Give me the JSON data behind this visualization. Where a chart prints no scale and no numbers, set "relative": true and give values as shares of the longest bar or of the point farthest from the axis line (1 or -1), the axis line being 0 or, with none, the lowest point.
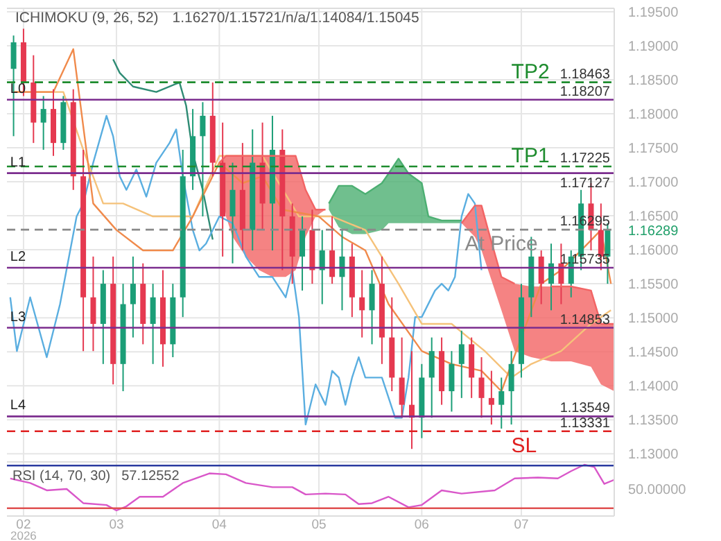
{
  "chart_data": [
    {
      "type": "candlestick",
      "title": "ICHIMOKU (9, 26, 52)",
      "subtitle": "1.16270/1.15721/n/a/1.14084/1.15045",
      "x": [
        "2026-01-29",
        "2026-02-01",
        "2026-02-04",
        "2026-02-07",
        "2026-02-10",
        "2026-02-13",
        "2026-02-16",
        "2026-02-19",
        "2026-02-22",
        "2026-02-25",
        "2026-02-28",
        "2026-03-03",
        "2026-03-06",
        "2026-03-09",
        "2026-03-12",
        "2026-03-15",
        "2026-03-18",
        "2026-03-21",
        "2026-03-24",
        "2026-03-27",
        "2026-03-30",
        "2026-04-02",
        "2026-04-05",
        "2026-04-08",
        "2026-04-11",
        "2026-04-14",
        "2026-04-17",
        "2026-04-20",
        "2026-04-23",
        "2026-04-26",
        "2026-04-29",
        "2026-05-02",
        "2026-05-05",
        "2026-05-08",
        "2026-05-11",
        "2026-05-14",
        "2026-05-17",
        "2026-05-20",
        "2026-05-23",
        "2026-05-26",
        "2026-05-29",
        "2026-06-01",
        "2026-06-04",
        "2026-06-07",
        "2026-06-10",
        "2026-06-13",
        "2026-06-16",
        "2026-06-19",
        "2026-06-22",
        "2026-06-25",
        "2026-06-28",
        "2026-07-01",
        "2026-07-04",
        "2026-07-07",
        "2026-07-10",
        "2026-07-13",
        "2026-07-16",
        "2026-07-19",
        "2026-07-22",
        "2026-07-25",
        "2026-07-27"
      ],
      "ohlc": [
        [
          1.1866,
          1.1915,
          1.1767,
          1.1905
        ],
        [
          1.1905,
          1.1925,
          1.1826,
          1.1846
        ],
        [
          1.1846,
          1.1886,
          1.1757,
          1.1787
        ],
        [
          1.1787,
          1.1826,
          1.1747,
          1.1807
        ],
        [
          1.1807,
          1.1836,
          1.1738,
          1.1757
        ],
        [
          1.1757,
          1.1826,
          1.1747,
          1.1817
        ],
        [
          1.1817,
          1.1836,
          1.1688,
          1.1708
        ],
        [
          1.1708,
          1.1747,
          1.1451,
          1.153
        ],
        [
          1.153,
          1.159,
          1.1451,
          1.1491
        ],
        [
          1.1491,
          1.157,
          1.1432,
          1.155
        ],
        [
          1.155,
          1.159,
          1.1402,
          1.1432
        ],
        [
          1.1432,
          1.155,
          1.1392,
          1.152
        ],
        [
          1.152,
          1.159,
          1.1471,
          1.155
        ],
        [
          1.155,
          1.158,
          1.1461,
          1.1491
        ],
        [
          1.1491,
          1.155,
          1.1432,
          1.153
        ],
        [
          1.153,
          1.157,
          1.1428,
          1.1461
        ],
        [
          1.1461,
          1.155,
          1.1442,
          1.153
        ],
        [
          1.153,
          1.1747,
          1.1501,
          1.1708
        ],
        [
          1.1708,
          1.1807,
          1.1688,
          1.1767
        ],
        [
          1.1767,
          1.1817,
          1.1649,
          1.1797
        ],
        [
          1.1797,
          1.1846,
          1.1708,
          1.1728
        ],
        [
          1.1728,
          1.1787,
          1.159,
          1.1649
        ],
        [
          1.1649,
          1.1728,
          1.158,
          1.1688
        ],
        [
          1.1688,
          1.1757,
          1.1599,
          1.1629
        ],
        [
          1.1629,
          1.1777,
          1.1599,
          1.1728
        ],
        [
          1.1728,
          1.1787,
          1.1629,
          1.1668
        ],
        [
          1.1668,
          1.1797,
          1.1599,
          1.1747
        ],
        [
          1.1747,
          1.1777,
          1.157,
          1.1649
        ],
        [
          1.1649,
          1.1668,
          1.155,
          1.159
        ],
        [
          1.159,
          1.1649,
          1.154,
          1.1629
        ],
        [
          1.1629,
          1.1659,
          1.155,
          1.157
        ],
        [
          1.157,
          1.1629,
          1.152,
          1.1599
        ],
        [
          1.1599,
          1.1649,
          1.155,
          1.156
        ],
        [
          1.156,
          1.1629,
          1.1511,
          1.159
        ],
        [
          1.159,
          1.1609,
          1.1501,
          1.153
        ],
        [
          1.153,
          1.157,
          1.1471,
          1.1511
        ],
        [
          1.1511,
          1.157,
          1.1461,
          1.155
        ],
        [
          1.155,
          1.159,
          1.1432,
          1.1471
        ],
        [
          1.1471,
          1.153,
          1.1392,
          1.1412
        ],
        [
          1.1412,
          1.1471,
          1.1353,
          1.1372
        ],
        [
          1.1372,
          1.1451,
          1.1307,
          1.1353
        ],
        [
          1.1353,
          1.1432,
          1.1323,
          1.1412
        ],
        [
          1.1412,
          1.1471,
          1.1353,
          1.1451
        ],
        [
          1.1451,
          1.1471,
          1.1372,
          1.1392
        ],
        [
          1.1392,
          1.1451,
          1.1362,
          1.1432
        ],
        [
          1.1432,
          1.1481,
          1.1382,
          1.1461
        ],
        [
          1.1461,
          1.1471,
          1.1382,
          1.1412
        ],
        [
          1.1412,
          1.1442,
          1.1353,
          1.1382
        ],
        [
          1.1382,
          1.1422,
          1.1343,
          1.1372
        ],
        [
          1.1372,
          1.1412,
          1.1337,
          1.1392
        ],
        [
          1.1392,
          1.1451,
          1.1343,
          1.1432
        ],
        [
          1.1432,
          1.155,
          1.1412,
          1.153
        ],
        [
          1.153,
          1.1619,
          1.1501,
          1.159
        ],
        [
          1.159,
          1.1599,
          1.152,
          1.155
        ],
        [
          1.155,
          1.1609,
          1.1511,
          1.158
        ],
        [
          1.158,
          1.1609,
          1.152,
          1.155
        ],
        [
          1.155,
          1.1599,
          1.153,
          1.159
        ],
        [
          1.159,
          1.1688,
          1.157,
          1.1668
        ],
        [
          1.1668,
          1.1698,
          1.1599,
          1.1629
        ],
        [
          1.1629,
          1.1668,
          1.157,
          1.159
        ],
        [
          1.159,
          1.1639,
          1.155,
          1.1629
        ]
      ],
      "series": [
        {
          "type": "line",
          "color": "#f26464",
          "x": [
            "2026-04-01",
            "2026-04-03",
            "2026-04-05",
            "2026-04-09",
            "2026-04-13",
            "2026-04-17",
            "2026-04-21",
            "2026-04-24",
            "2026-04-27",
            "2026-04-30",
            "2026-05-03"
          ],
          "values": [
            1.1728,
            1.1738,
            1.1738,
            1.1738,
            1.1738,
            1.1738,
            1.1738,
            1.1738,
            1.1688,
            1.1659,
            1.1659
          ],
          "upper": [
            1.1728,
            1.1738,
            1.1738,
            1.1738,
            1.1738,
            1.1738,
            1.1738,
            1.1738,
            1.1688,
            1.1659,
            1.1659
          ],
          "lower": [
            1.1724,
            1.1649,
            1.1619,
            1.159,
            1.157,
            1.156,
            1.156,
            1.157,
            1.1619,
            1.1649,
            1.1659
          ]
        },
        {
          "type": "line",
          "color": "#4caf72",
          "x": [
            "2026-05-04",
            "2026-05-07",
            "2026-05-11",
            "2026-05-15",
            "2026-05-20",
            "2026-05-22",
            "2026-05-25",
            "2026-05-28",
            "2026-06-01",
            "2026-06-03",
            "2026-06-07",
            "2026-06-11",
            "2026-06-13"
          ],
          "values": [
            1.1668,
            1.1694,
            1.1694,
            1.1682,
            1.1698,
            1.1712,
            1.1734,
            1.1712,
            1.1698,
            1.1649,
            1.1643,
            1.1643,
            1.1643
          ],
          "upper": [
            1.1668,
            1.1694,
            1.1694,
            1.1682,
            1.1698,
            1.1712,
            1.1734,
            1.1712,
            1.1698,
            1.1649,
            1.1643,
            1.1643,
            1.1643
          ],
          "lower": [
            1.1659,
            1.1633,
            1.1623,
            1.1623,
            1.1629,
            1.1639,
            1.1639,
            1.1639,
            1.1639,
            1.1639,
            1.1639,
            1.1639,
            1.1639
          ]
        },
        {
          "type": "line",
          "color": "#f26464",
          "x": [
            "2026-06-13",
            "2026-06-17",
            "2026-06-19",
            "2026-06-21",
            "2026-06-25",
            "2026-06-29",
            "2026-07-04",
            "2026-07-10",
            "2026-07-16",
            "2026-07-22",
            "2026-07-25",
            "2026-07-29"
          ],
          "values": [
            1.1639,
            1.1665,
            1.1665,
            1.1629,
            1.156,
            1.155,
            null,
            1.1546,
            1.1546,
            1.154,
            1.1491,
            1.1491
          ],
          "upper": [
            1.1639,
            1.1665,
            1.1665,
            1.1629,
            1.156,
            1.155,
            1.1546,
            1.1546,
            1.1546,
            1.154,
            1.1491,
            1.1491
          ],
          "lower": [
            1.1639,
            1.1619,
            1.1599,
            1.157,
            1.1511,
            1.1451,
            1.1442,
            1.1436,
            1.1436,
            1.1428,
            1.1402,
            1.1392
          ]
        },
        {
          "type": "line",
          "color": "#2e8b74",
          "x": [
            "2026-02-28",
            "2026-03-02",
            "2026-03-06",
            "2026-03-13",
            "2026-03-20",
            "2026-03-22",
            "2026-03-24",
            "2026-03-27",
            "2026-03-30"
          ],
          "values": [
            1.188,
            1.186,
            1.184,
            1.1832,
            1.1846,
            1.1812,
            1.1742,
            1.1688,
            1.1615
          ]
        },
        {
          "type": "line",
          "color": "#5aaee0",
          "x": [
            "2026-01-28",
            "2026-01-30",
            "2026-02-03",
            "2026-02-08",
            "2026-02-12",
            "2026-02-17",
            "2026-02-19",
            "2026-02-22",
            "2026-02-26",
            "2026-02-28",
            "2026-03-02",
            "2026-03-04",
            "2026-03-07",
            "2026-03-10",
            "2026-03-13",
            "2026-03-17",
            "2026-03-19",
            "2026-03-21",
            "2026-03-24",
            "2026-03-26",
            "2026-03-28",
            "2026-04-01",
            "2026-04-05",
            "2026-04-09",
            "2026-04-13",
            "2026-04-17",
            "2026-04-21",
            "2026-04-23",
            "2026-04-25",
            "2026-04-27",
            "2026-04-30",
            "2026-05-03",
            "2026-05-05",
            "2026-05-07",
            "2026-05-09",
            "2026-05-11",
            "2026-05-13",
            "2026-05-15",
            "2026-05-20",
            "2026-05-24",
            "2026-05-26",
            "2026-05-28",
            "2026-05-30",
            "2026-06-01",
            "2026-06-05",
            "2026-06-07",
            "2026-06-09",
            "2026-06-11",
            "2026-06-13",
            "2026-06-15",
            "2026-06-17",
            "2026-06-19"
          ],
          "values": [
            1.153,
            1.1451,
            1.153,
            1.1442,
            1.152,
            1.1649,
            1.1668,
            1.1728,
            1.1797,
            1.1767,
            1.1708,
            1.1688,
            1.1718,
            1.1678,
            1.1728,
            1.1757,
            1.1777,
            1.1708,
            1.1629,
            1.1599,
            1.1609,
            1.1649,
            1.1639,
            1.159,
            1.156,
            1.156,
            1.153,
            1.157,
            1.1501,
            1.1343,
            1.1402,
            1.1372,
            1.1422,
            1.1412,
            1.1372,
            1.1412,
            1.1442,
            1.1412,
            1.1412,
            1.1353,
            1.1353,
            1.1412,
            1.1501,
            1.1501,
            1.154,
            1.155,
            1.154,
            1.156,
            1.1649,
            1.1682,
            1.1668,
            1.157
          ]
        },
        {
          "type": "line",
          "color": "#f5c27a",
          "x": [
            "2026-01-29",
            "2026-02-13",
            "2026-02-19",
            "2026-02-25",
            "2026-03-03",
            "2026-03-12",
            "2026-03-24",
            "2026-04-01",
            "2026-04-14",
            "2026-04-25",
            "2026-05-05",
            "2026-05-15",
            "2026-05-25",
            "2026-06-01",
            "2026-06-10",
            "2026-06-20",
            "2026-06-28",
            "2026-07-04",
            "2026-07-13",
            "2026-07-22",
            "2026-07-28"
          ],
          "values": [
            1.1832,
            1.1832,
            1.1747,
            1.1668,
            1.1668,
            1.1649,
            1.1649,
            1.1738,
            1.1738,
            1.1649,
            1.1649,
            1.1629,
            1.155,
            1.1491,
            1.1491,
            1.1451,
            1.1412,
            1.1432,
            1.1451,
            1.1491,
            1.1511
          ]
        },
        {
          "type": "line",
          "color": "#f08a4b",
          "x": [
            "2026-01-29",
            "2026-02-10",
            "2026-02-16",
            "2026-02-22",
            "2026-03-01",
            "2026-03-09",
            "2026-03-18",
            "2026-03-24",
            "2026-04-01",
            "2026-04-08",
            "2026-04-14",
            "2026-04-20",
            "2026-05-01",
            "2026-05-08",
            "2026-05-15",
            "2026-05-22",
            "2026-06-01",
            "2026-06-10",
            "2026-06-19",
            "2026-06-25",
            "2026-07-01",
            "2026-07-07",
            "2026-07-13",
            "2026-07-19",
            "2026-07-25",
            "2026-07-28"
          ],
          "values": [
            1.1832,
            1.1832,
            1.1895,
            1.1668,
            1.1629,
            1.1599,
            1.1599,
            1.1649,
            1.1728,
            1.1698,
            1.1708,
            1.1659,
            1.1649,
            1.1619,
            1.1599,
            1.152,
            1.1451,
            1.1432,
            1.1422,
            1.1392,
            1.1471,
            1.155,
            1.157,
            1.1599,
            1.1629,
            1.155
          ]
        }
      ],
      "xlim": [
        "2026-01-27",
        "2026-07-29"
      ],
      "xticks": [
        "2026-02-01",
        "2026-03-01",
        "2026-04-01",
        "2026-05-01",
        "2026-06-01",
        "2026-07-01"
      ],
      "ylim": [
        1.1288,
        1.1955
      ],
      "yticks": [
        {
          "value": 1.13,
          "label": "1.13000"
        },
        {
          "value": 1.135,
          "label": "1.13500"
        },
        {
          "value": 1.14,
          "label": "1.14000"
        },
        {
          "value": 1.145,
          "label": "1.14500"
        },
        {
          "value": 1.15,
          "label": "1.15000"
        },
        {
          "value": 1.155,
          "label": "1.15500"
        },
        {
          "value": 1.16,
          "label": "1.16000"
        },
        {
          "value": 1.165,
          "label": "1.16500"
        },
        {
          "value": 1.17,
          "label": "1.17000"
        },
        {
          "value": 1.175,
          "label": "1.17500"
        },
        {
          "value": 1.18,
          "label": "1.18000"
        },
        {
          "value": 1.185,
          "label": "1.18500"
        },
        {
          "value": 1.19,
          "label": "1.19000"
        },
        {
          "value": 1.195,
          "label": "1.19500"
        }
      ],
      "grid": true,
      "tick_labels": "y",
      "ref_lines": [
        {
          "axis": "y",
          "value": 1.18463,
          "label": "1.18463",
          "color": "#1e8c2e",
          "line_style": "dashed"
        },
        {
          "axis": "y",
          "value": 1.18207,
          "label": "1.18207",
          "color": "#7b2d8e",
          "line_style": "solid"
        },
        {
          "axis": "y",
          "value": 1.17225,
          "label": "1.17225",
          "color": "#1e8c2e",
          "line_style": "dashed"
        },
        {
          "axis": "y",
          "value": 1.17127,
          "label": "1.17127",
          "color": "#7b2d8e",
          "line_style": "solid"
        },
        {
          "axis": "y",
          "value": 1.16295,
          "label": "1.16295",
          "color": "#8a8a8a",
          "line_style": "dashed"
        },
        {
          "axis": "y",
          "value": 1.15735,
          "label": "1.15735",
          "color": "#7b2d8e",
          "line_style": "solid"
        },
        {
          "axis": "y",
          "value": 1.14853,
          "label": "1.14853",
          "color": "#7b2d8e",
          "line_style": "solid"
        },
        {
          "axis": "y",
          "value": 1.13549,
          "label": "1.13549",
          "color": "#7b2d8e",
          "line_style": "solid"
        },
        {
          "axis": "y",
          "value": 1.13331,
          "label": "1.13331",
          "color": "#e02020",
          "line_style": "dashed"
        }
      ],
      "annotations": [
        {
          "text": "L0",
          "x": "2026-01-28",
          "y": 1.18207
        },
        {
          "text": "L1",
          "x": "2026-01-28",
          "y": 1.17127
        },
        {
          "text": "L2",
          "x": "2026-01-28",
          "y": 1.15735
        },
        {
          "text": "L3",
          "x": "2026-01-28",
          "y": 1.14853
        },
        {
          "text": "L4",
          "x": "2026-01-28",
          "y": 1.13549
        },
        {
          "text": "TP2",
          "x": "2026-06-28",
          "y": 1.18463
        },
        {
          "text": "TP1",
          "x": "2026-06-28",
          "y": 1.17225
        },
        {
          "text": "At Price",
          "x": "2026-06-14",
          "y": 1.16295
        },
        {
          "text": "SL",
          "x": "2026-06-28",
          "y": 1.13331
        },
        "1.16289"
      ]
    },
    {
      "type": "line",
      "title": "RSI (14, 70, 30)",
      "subtitle": "57.12552",
      "x": [
        "2026-01-28",
        "2026-02-03",
        "2026-02-08",
        "2026-02-14",
        "2026-02-19",
        "2026-02-26",
        "2026-03-01",
        "2026-03-04",
        "2026-03-08",
        "2026-03-15",
        "2026-03-21",
        "2026-03-29",
        "2026-04-03",
        "2026-04-09",
        "2026-04-17",
        "2026-04-23",
        "2026-04-27",
        "2026-05-03",
        "2026-05-09",
        "2026-05-13",
        "2026-05-17",
        "2026-05-22",
        "2026-05-28",
        "2026-06-01",
        "2026-06-07",
        "2026-06-13",
        "2026-06-23",
        "2026-06-29",
        "2026-07-06",
        "2026-07-12",
        "2026-07-16",
        "2026-07-20",
        "2026-07-23",
        "2026-07-26",
        "2026-07-29"
      ],
      "series": [
        {
          "color": "#d957c9",
          "values": [
            0.7,
            0.6,
            0.44,
            0.47,
            0.16,
            0.12,
            0,
            0.09,
            0.3,
            0.3,
            0.6,
            0.81,
            0.79,
            0.6,
            0.51,
            0.51,
            0.35,
            0.37,
            0.35,
            0.14,
            0.16,
            0.3,
            0.07,
            0.12,
            0.44,
            0.37,
            0.44,
            0.7,
            0.72,
            0.7,
            0.86,
            1,
            0.95,
            0.58,
            0.67
          ]
        }
      ],
      "relative": true,
      "xlim": [
        "2026-01-27",
        "2026-07-29"
      ],
      "xticks": [
        {
          "value": "2026-02-01",
          "label": "02"
        },
        {
          "value": "2026-03-01",
          "label": "03"
        },
        {
          "value": "2026-04-01",
          "label": "04"
        },
        {
          "value": "2026-05-01",
          "label": "05"
        },
        {
          "value": "2026-06-01",
          "label": "06"
        },
        {
          "value": "2026-07-01",
          "label": "07"
        }
      ],
      "grid": "x",
      "ref_lines": [
        {
          "axis": "y",
          "value": 0.98,
          "color": "#2a3aa0",
          "line_style": "solid"
        },
        {
          "axis": "y",
          "value": 0.05,
          "color": "#e05050",
          "line_style": "solid"
        }
      ],
      "annotations": [
        "2026",
        "50.00000"
      ]
    }
  ]
}
